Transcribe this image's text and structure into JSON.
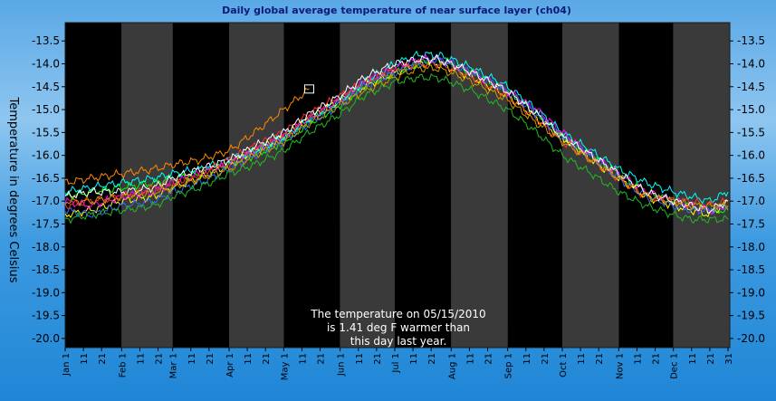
{
  "chart_data": {
    "type": "line",
    "title": "Daily global average temperature of near surface layer (ch04)",
    "ylabel": "Temperature in degrees Celsius",
    "xlabel": "",
    "ylim": [
      -20.2,
      -13.1
    ],
    "y_ticks": [
      -13.5,
      -14.0,
      -14.5,
      -15.0,
      -15.5,
      -16.0,
      -16.5,
      -17.0,
      -17.5,
      -18.0,
      -18.5,
      -19.0,
      -19.5,
      -20.0
    ],
    "y_tick_labels": [
      "-13.5",
      "-14.0",
      "-14.5",
      "-15.0",
      "-15.5",
      "-16.0",
      "-16.5",
      "-17.0",
      "-17.5",
      "-18.0",
      "-18.5",
      "-19.0",
      "-19.5",
      "-20.0"
    ],
    "x_ticks": [
      {
        "day": 1,
        "label": "Jan 1"
      },
      {
        "day": 11,
        "label": "11"
      },
      {
        "day": 21,
        "label": "21"
      },
      {
        "day": 32,
        "label": "Feb 1"
      },
      {
        "day": 42,
        "label": "11"
      },
      {
        "day": 52,
        "label": "21"
      },
      {
        "day": 60,
        "label": "Mar 1"
      },
      {
        "day": 70,
        "label": "11"
      },
      {
        "day": 80,
        "label": "21"
      },
      {
        "day": 91,
        "label": "Apr 1"
      },
      {
        "day": 101,
        "label": "11"
      },
      {
        "day": 111,
        "label": "21"
      },
      {
        "day": 121,
        "label": "May 1"
      },
      {
        "day": 131,
        "label": "11"
      },
      {
        "day": 141,
        "label": "21"
      },
      {
        "day": 152,
        "label": "Jun 1"
      },
      {
        "day": 162,
        "label": "11"
      },
      {
        "day": 172,
        "label": "21"
      },
      {
        "day": 182,
        "label": "Jul 1"
      },
      {
        "day": 192,
        "label": "11"
      },
      {
        "day": 202,
        "label": "21"
      },
      {
        "day": 213,
        "label": "Aug 1"
      },
      {
        "day": 223,
        "label": "11"
      },
      {
        "day": 233,
        "label": "21"
      },
      {
        "day": 244,
        "label": "Sep 1"
      },
      {
        "day": 254,
        "label": "11"
      },
      {
        "day": 264,
        "label": "21"
      },
      {
        "day": 274,
        "label": "Oct 1"
      },
      {
        "day": 284,
        "label": "11"
      },
      {
        "day": 294,
        "label": "21"
      },
      {
        "day": 305,
        "label": "Nov 1"
      },
      {
        "day": 315,
        "label": "11"
      },
      {
        "day": 325,
        "label": "21"
      },
      {
        "day": 335,
        "label": "Dec 1"
      },
      {
        "day": 345,
        "label": "11"
      },
      {
        "day": 355,
        "label": "21"
      },
      {
        "day": 365,
        "label": "31"
      }
    ],
    "month_starts": [
      1,
      32,
      60,
      91,
      121,
      152,
      182,
      213,
      244,
      274,
      305,
      335,
      366
    ],
    "month_band_colors": [
      "#000000",
      "#3a3a3a"
    ],
    "grid": false,
    "legend": "none",
    "annotation_lines": [
      "The temperature on 05/15/2010",
      "is  1.41 deg F warmer than",
      "this day last year."
    ],
    "highlight_point": {
      "day": 135,
      "value": -14.55
    },
    "series": [
      {
        "color": "#00ff00",
        "days": [
          1,
          15,
          32,
          50,
          60,
          75,
          91,
          105,
          121,
          135,
          152,
          165,
          182,
          195,
          205,
          213,
          225,
          244,
          260,
          274,
          290,
          305,
          320,
          335,
          345,
          355,
          365
        ],
        "values": [
          -16.9,
          -16.8,
          -16.7,
          -16.6,
          -16.5,
          -16.4,
          -16.2,
          -16.0,
          -15.7,
          -15.3,
          -14.9,
          -14.5,
          -14.2,
          -14.0,
          -13.9,
          -14.0,
          -14.2,
          -14.6,
          -15.1,
          -15.6,
          -16.0,
          -16.4,
          -16.8,
          -17.0,
          -17.1,
          -17.2,
          -17.2
        ]
      },
      {
        "color": "#ffff00",
        "days": [
          1,
          15,
          32,
          50,
          60,
          75,
          91,
          105,
          121,
          135,
          152,
          165,
          182,
          195,
          205,
          213,
          225,
          244,
          260,
          274,
          290,
          305,
          320,
          335,
          345,
          355,
          365
        ],
        "values": [
          -17.3,
          -17.2,
          -17.0,
          -16.9,
          -16.7,
          -16.5,
          -16.2,
          -15.9,
          -15.6,
          -15.2,
          -14.8,
          -14.5,
          -14.2,
          -14.0,
          -14.0,
          -14.1,
          -14.3,
          -14.7,
          -15.2,
          -15.6,
          -16.1,
          -16.5,
          -16.9,
          -17.1,
          -17.2,
          -17.3,
          -17.0
        ]
      },
      {
        "color": "#00ffff",
        "days": [
          1,
          15,
          32,
          50,
          60,
          75,
          91,
          105,
          121,
          135,
          152,
          165,
          182,
          195,
          205,
          213,
          225,
          244,
          260,
          274,
          290,
          305,
          320,
          335,
          345,
          355,
          365
        ],
        "values": [
          -16.8,
          -16.7,
          -16.6,
          -16.5,
          -16.4,
          -16.3,
          -16.1,
          -15.9,
          -15.6,
          -15.2,
          -14.8,
          -14.4,
          -14.0,
          -13.8,
          -13.8,
          -13.9,
          -14.1,
          -14.5,
          -15.0,
          -15.5,
          -15.9,
          -16.3,
          -16.6,
          -16.8,
          -16.9,
          -17.0,
          -16.8
        ]
      },
      {
        "color": "#ff00ff",
        "days": [
          1,
          15,
          32,
          50,
          60,
          75,
          91,
          105,
          121,
          135,
          152,
          165,
          182,
          195,
          205,
          213,
          225,
          244,
          260,
          274,
          290,
          305,
          320,
          335,
          345,
          355,
          365
        ],
        "values": [
          -17.0,
          -17.1,
          -16.9,
          -16.8,
          -16.6,
          -16.4,
          -16.2,
          -15.9,
          -15.6,
          -15.2,
          -14.8,
          -14.4,
          -14.1,
          -13.9,
          -13.9,
          -14.0,
          -14.2,
          -14.6,
          -15.0,
          -15.5,
          -16.0,
          -16.4,
          -16.8,
          -17.0,
          -17.1,
          -17.2,
          -17.1
        ]
      },
      {
        "color": "#ff8800",
        "days": [
          1,
          15,
          32,
          50,
          60,
          75,
          91,
          105,
          121,
          135
        ],
        "values": [
          -16.6,
          -16.5,
          -16.4,
          -16.3,
          -16.2,
          -16.1,
          -15.9,
          -15.5,
          -15.0,
          -14.55
        ]
      },
      {
        "color": "#ff3030",
        "days": [
          1,
          15,
          32,
          50,
          60,
          75,
          91,
          105,
          121,
          135,
          152,
          165,
          182,
          195,
          205,
          213,
          225,
          244,
          260,
          274,
          290,
          305,
          320,
          335,
          345,
          355,
          365
        ],
        "values": [
          -17.1,
          -17.0,
          -16.9,
          -16.7,
          -16.6,
          -16.4,
          -16.1,
          -15.8,
          -15.5,
          -15.1,
          -14.7,
          -14.4,
          -14.1,
          -14.0,
          -14.0,
          -14.1,
          -14.3,
          -14.7,
          -15.2,
          -15.7,
          -16.1,
          -16.5,
          -16.9,
          -17.0,
          -17.0,
          -17.1,
          -17.0
        ]
      },
      {
        "color": "#3366ff",
        "days": [
          1,
          15,
          32,
          50,
          60,
          75,
          91,
          105,
          121,
          135,
          152,
          165,
          182,
          195,
          205,
          213,
          225,
          244,
          260,
          274,
          290,
          305,
          320,
          335,
          345,
          355,
          365
        ],
        "values": [
          -17.2,
          -17.3,
          -17.1,
          -17.0,
          -16.8,
          -16.6,
          -16.3,
          -16.0,
          -15.7,
          -15.3,
          -14.9,
          -14.5,
          -14.2,
          -14.0,
          -13.9,
          -14.0,
          -14.2,
          -14.6,
          -15.1,
          -15.6,
          -16.0,
          -16.5,
          -16.9,
          -17.1,
          -17.2,
          -17.2,
          -17.1
        ]
      },
      {
        "color": "#ffffff",
        "days": [
          1,
          15,
          32,
          50,
          60,
          75,
          91,
          105,
          121,
          135,
          152,
          165,
          182,
          195,
          205,
          213,
          225,
          244,
          260,
          274,
          290,
          305,
          320,
          335,
          345,
          355,
          365
        ],
        "values": [
          -16.9,
          -16.8,
          -16.8,
          -16.7,
          -16.5,
          -16.3,
          -16.1,
          -15.8,
          -15.5,
          -15.1,
          -14.7,
          -14.3,
          -14.0,
          -13.9,
          -13.9,
          -14.0,
          -14.2,
          -14.6,
          -15.1,
          -15.6,
          -16.0,
          -16.4,
          -16.8,
          -17.0,
          -17.1,
          -17.2,
          -17.0
        ]
      },
      {
        "color": "#22bb22",
        "days": [
          1,
          15,
          32,
          50,
          60,
          75,
          91,
          105,
          121,
          135,
          152,
          165,
          182,
          195,
          205,
          213,
          225,
          244,
          260,
          274,
          290,
          305,
          320,
          335,
          345,
          355,
          365
        ],
        "values": [
          -17.4,
          -17.3,
          -17.2,
          -17.1,
          -16.9,
          -16.7,
          -16.4,
          -16.2,
          -15.9,
          -15.5,
          -15.1,
          -14.7,
          -14.4,
          -14.3,
          -14.3,
          -14.4,
          -14.6,
          -15.0,
          -15.5,
          -16.0,
          -16.4,
          -16.8,
          -17.1,
          -17.3,
          -17.4,
          -17.4,
          -17.4
        ]
      },
      {
        "color": "#cc9900",
        "days": [
          1,
          15,
          32,
          50,
          60,
          75,
          91,
          105,
          121,
          135,
          152,
          165,
          182,
          195,
          205,
          213,
          225,
          244,
          260,
          274,
          290,
          305,
          320,
          335,
          345,
          355,
          365
        ],
        "values": [
          -17.0,
          -17.0,
          -16.9,
          -16.8,
          -16.7,
          -16.5,
          -16.3,
          -16.0,
          -15.7,
          -15.3,
          -14.9,
          -14.6,
          -14.3,
          -14.1,
          -14.1,
          -14.2,
          -14.4,
          -14.8,
          -15.3,
          -15.7,
          -16.1,
          -16.5,
          -16.9,
          -17.0,
          -17.1,
          -17.1,
          -17.1
        ]
      }
    ]
  }
}
